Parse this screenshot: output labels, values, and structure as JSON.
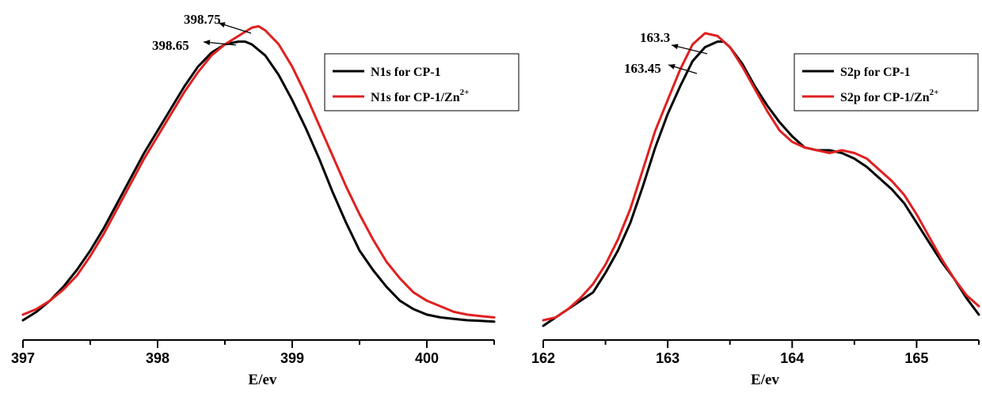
{
  "chart_data": [
    {
      "type": "line",
      "title": "",
      "xlabel": "E/ev",
      "ylabel": "",
      "xlim": [
        397,
        400.5
      ],
      "ylim": [
        0,
        1.05
      ],
      "xticks": [
        397,
        398,
        399,
        400
      ],
      "tick_labels": [
        "397",
        "398",
        "399",
        "400"
      ],
      "grid": false,
      "legend_position": "top-right",
      "series": [
        {
          "name": "N1s for CP-1",
          "legend_main": "N1s for CP-1",
          "legend_sup": "",
          "color": "#000000",
          "x": [
            397.0,
            397.1,
            397.2,
            397.3,
            397.4,
            397.5,
            397.6,
            397.7,
            397.8,
            397.9,
            398.0,
            398.1,
            398.2,
            398.3,
            398.4,
            398.5,
            398.6,
            398.65,
            398.7,
            398.8,
            398.9,
            399.0,
            399.1,
            399.2,
            399.3,
            399.4,
            399.5,
            399.6,
            399.7,
            399.8,
            399.9,
            400.0,
            400.1,
            400.2,
            400.3,
            400.4,
            400.5
          ],
          "values": [
            0.02,
            0.05,
            0.09,
            0.14,
            0.2,
            0.27,
            0.35,
            0.44,
            0.53,
            0.62,
            0.7,
            0.78,
            0.86,
            0.93,
            0.98,
            1.01,
            1.02,
            1.02,
            1.01,
            0.97,
            0.9,
            0.81,
            0.71,
            0.6,
            0.48,
            0.37,
            0.27,
            0.2,
            0.14,
            0.09,
            0.06,
            0.04,
            0.03,
            0.025,
            0.02,
            0.018,
            0.015
          ]
        },
        {
          "name": "N1s for CP-1/Zn2+",
          "legend_main": "N1s for CP-1/Zn",
          "legend_sup": "2+",
          "color": "#e02020",
          "x": [
            397.0,
            397.1,
            397.2,
            397.3,
            397.4,
            397.5,
            397.6,
            397.7,
            397.8,
            397.9,
            398.0,
            398.1,
            398.2,
            398.3,
            398.4,
            398.5,
            398.6,
            398.7,
            398.75,
            398.8,
            398.9,
            399.0,
            399.1,
            399.2,
            399.3,
            399.4,
            399.5,
            399.6,
            399.7,
            399.8,
            399.9,
            400.0,
            400.1,
            400.2,
            400.3,
            400.4,
            400.5
          ],
          "values": [
            0.04,
            0.06,
            0.09,
            0.13,
            0.18,
            0.25,
            0.33,
            0.42,
            0.51,
            0.6,
            0.68,
            0.76,
            0.84,
            0.91,
            0.97,
            1.01,
            1.04,
            1.07,
            1.075,
            1.06,
            1.01,
            0.93,
            0.83,
            0.72,
            0.61,
            0.5,
            0.4,
            0.31,
            0.23,
            0.17,
            0.12,
            0.09,
            0.07,
            0.05,
            0.04,
            0.035,
            0.03
          ]
        }
      ],
      "annotations": [
        {
          "text": "398.75",
          "x": 398.75
        },
        {
          "text": "398.65",
          "x": 398.65
        }
      ]
    },
    {
      "type": "line",
      "title": "",
      "xlabel": "E/ev",
      "ylabel": "",
      "xlim": [
        162,
        165.5
      ],
      "ylim": [
        0,
        1.05
      ],
      "xticks": [
        162,
        163,
        164,
        165
      ],
      "tick_labels": [
        "162",
        "163",
        "164",
        "165"
      ],
      "grid": false,
      "legend_position": "top-right",
      "series": [
        {
          "name": "S2p for CP-1",
          "legend_main": "S2p for CP-1",
          "legend_sup": "",
          "color": "#000000",
          "x": [
            162.0,
            162.1,
            162.2,
            162.3,
            162.4,
            162.5,
            162.6,
            162.7,
            162.8,
            162.9,
            163.0,
            163.1,
            163.2,
            163.3,
            163.4,
            163.45,
            163.5,
            163.6,
            163.7,
            163.8,
            163.9,
            164.0,
            164.1,
            164.2,
            164.3,
            164.4,
            164.5,
            164.6,
            164.7,
            164.8,
            164.9,
            165.0,
            165.1,
            165.2,
            165.3,
            165.4,
            165.5
          ],
          "values": [
            0.0,
            0.03,
            0.06,
            0.09,
            0.12,
            0.19,
            0.27,
            0.37,
            0.5,
            0.64,
            0.76,
            0.86,
            0.95,
            1.0,
            1.02,
            1.02,
            1.0,
            0.94,
            0.86,
            0.79,
            0.73,
            0.68,
            0.64,
            0.63,
            0.63,
            0.62,
            0.6,
            0.57,
            0.53,
            0.49,
            0.44,
            0.37,
            0.3,
            0.23,
            0.17,
            0.1,
            0.04
          ]
        },
        {
          "name": "S2p for CP-1/Zn2+",
          "legend_main": "S2p for CP-1/Zn",
          "legend_sup": "2+",
          "color": "#e02020",
          "x": [
            162.0,
            162.1,
            162.2,
            162.3,
            162.4,
            162.5,
            162.6,
            162.7,
            162.8,
            162.9,
            163.0,
            163.1,
            163.2,
            163.3,
            163.4,
            163.5,
            163.6,
            163.7,
            163.8,
            163.9,
            164.0,
            164.1,
            164.2,
            164.3,
            164.4,
            164.5,
            164.6,
            164.7,
            164.8,
            164.9,
            165.0,
            165.1,
            165.2,
            165.3,
            165.4,
            165.5
          ],
          "values": [
            0.02,
            0.03,
            0.06,
            0.1,
            0.15,
            0.22,
            0.31,
            0.42,
            0.56,
            0.7,
            0.81,
            0.92,
            1.01,
            1.05,
            1.04,
            1.0,
            0.93,
            0.85,
            0.77,
            0.7,
            0.66,
            0.64,
            0.63,
            0.62,
            0.63,
            0.62,
            0.6,
            0.56,
            0.52,
            0.47,
            0.4,
            0.32,
            0.24,
            0.17,
            0.11,
            0.07
          ]
        }
      ],
      "annotations": [
        {
          "text": "163.3",
          "x": 163.3
        },
        {
          "text": "163.45",
          "x": 163.45
        }
      ]
    }
  ]
}
